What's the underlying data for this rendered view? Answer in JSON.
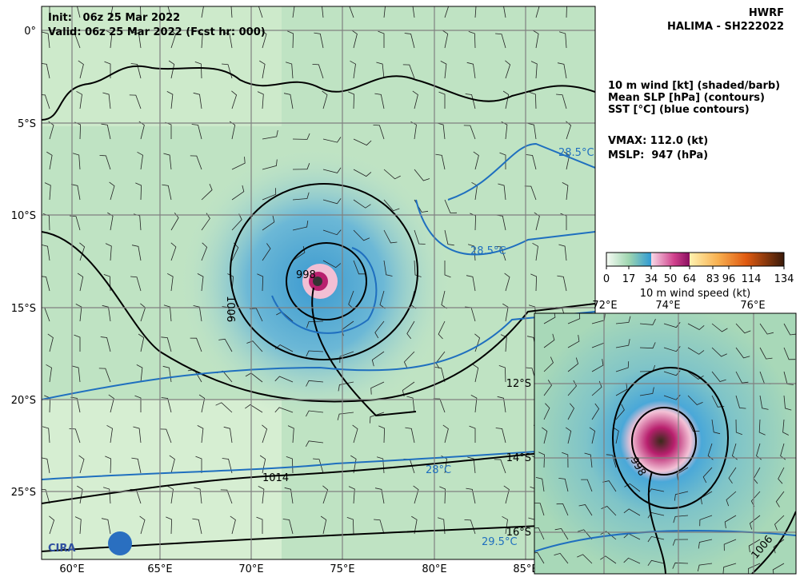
{
  "header": {
    "init": "Init:   06z 25 Mar 2022",
    "valid": "Valid: 06z 25 Mar 2022 (Fcst hr: 000)",
    "model": "HWRF",
    "storm": "HALIMA - SH222022"
  },
  "legend": {
    "lines": [
      "10 m wind [kt] (shaded/barb)",
      "Mean SLP [hPa] (contours)",
      "SST [°C] (blue contours)"
    ],
    "vmax": "VMAX: 112.0 (kt)",
    "mslp": "MSLP:  947 (hPa)"
  },
  "colorbar": {
    "ticks": [
      "0",
      "17",
      "34",
      "50",
      "64",
      "83",
      "96",
      "114",
      "134"
    ],
    "label": "10 m wind speed (kt)"
  },
  "main_map": {
    "lat_labels": [
      "0°",
      "5°S",
      "10°S",
      "15°S",
      "20°S",
      "25°S"
    ],
    "lon_labels": [
      "60°E",
      "65°E",
      "70°E",
      "75°E",
      "80°E",
      "85°E"
    ],
    "contour_labels": [
      "1006",
      "1014",
      "28.5°C",
      "28.5°C",
      "28°C",
      "29.5°C",
      "998"
    ]
  },
  "inset_map": {
    "lon_labels": [
      "72°E",
      "74°E",
      "76°E"
    ],
    "lat_labels": [
      "12°S",
      "14°S",
      "16°S"
    ],
    "contour_labels": [
      "1006",
      "998"
    ]
  },
  "logo": "CIRA"
}
